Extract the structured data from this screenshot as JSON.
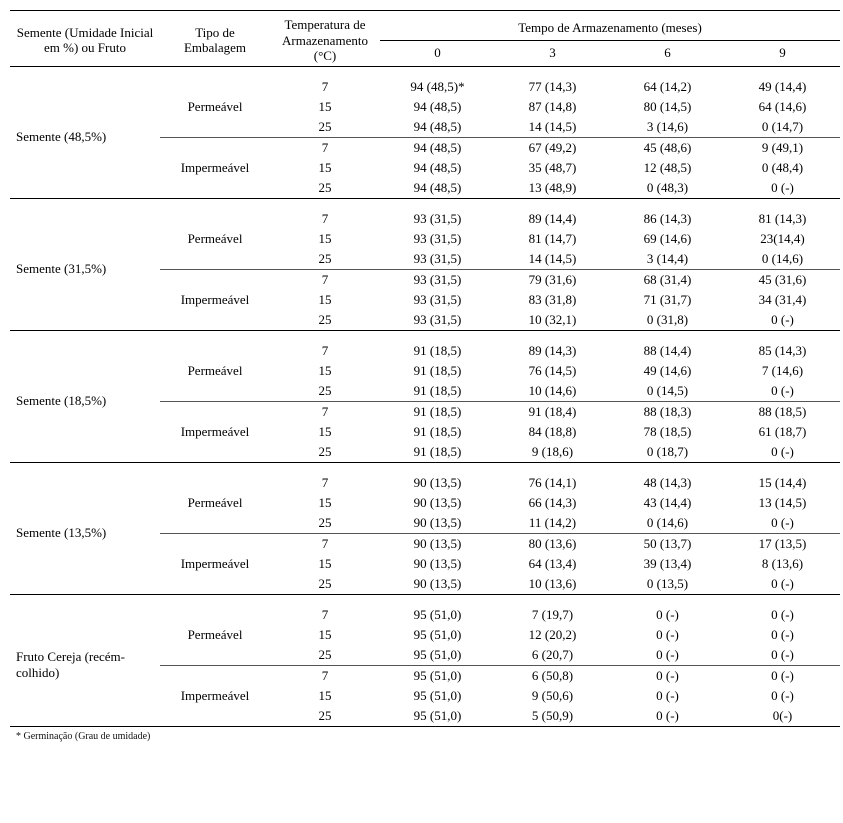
{
  "header": {
    "col_semente": "Semente (Umidade Inicial em %) ou Fruto",
    "col_embalagem": "Tipo de Embalagem",
    "col_temp": "Temperatura de Armazenamento (°C)",
    "col_tempo": "Tempo de Armazenamento (meses)",
    "months": [
      "0",
      "3",
      "6",
      "9"
    ]
  },
  "footnote": "* Germinação (Grau de umidade)",
  "temps": [
    "7",
    "15",
    "25"
  ],
  "emb": [
    "Permeável",
    "Impermeável"
  ],
  "sections": [
    {
      "label": "Semente (48,5%)",
      "blocks": [
        {
          "emb": "Permeável",
          "rows": [
            [
              "7",
              "94 (48,5)*",
              "77 (14,3)",
              "64 (14,2)",
              "49 (14,4)"
            ],
            [
              "15",
              "94 (48,5)",
              "87 (14,8)",
              "80 (14,5)",
              "64 (14,6)"
            ],
            [
              "25",
              "94 (48,5)",
              "14 (14,5)",
              "3 (14,6)",
              "0 (14,7)"
            ]
          ]
        },
        {
          "emb": "Impermeável",
          "rows": [
            [
              "7",
              "94 (48,5)",
              "67 (49,2)",
              "45 (48,6)",
              "9 (49,1)"
            ],
            [
              "15",
              "94 (48,5)",
              "35 (48,7)",
              "12 (48,5)",
              "0 (48,4)"
            ],
            [
              "25",
              "94 (48,5)",
              "13 (48,9)",
              "0 (48,3)",
              "0 (-)"
            ]
          ]
        }
      ]
    },
    {
      "label": "Semente (31,5%)",
      "blocks": [
        {
          "emb": "Permeável",
          "rows": [
            [
              "7",
              "93 (31,5)",
              "89 (14,4)",
              "86 (14,3)",
              "81 (14,3)"
            ],
            [
              "15",
              "93 (31,5)",
              "81 (14,7)",
              "69 (14,6)",
              "23(14,4)"
            ],
            [
              "25",
              "93 (31,5)",
              "14 (14,5)",
              "3 (14,4)",
              "0 (14,6)"
            ]
          ]
        },
        {
          "emb": "Impermeável",
          "rows": [
            [
              "7",
              "93 (31,5)",
              "79 (31,6)",
              "68 (31,4)",
              "45 (31,6)"
            ],
            [
              "15",
              "93 (31,5)",
              "83 (31,8)",
              "71 (31,7)",
              "34 (31,4)"
            ],
            [
              "25",
              "93 (31,5)",
              "10 (32,1)",
              "0 (31,8)",
              "0 (-)"
            ]
          ]
        }
      ]
    },
    {
      "label": "Semente (18,5%)",
      "blocks": [
        {
          "emb": "Permeável",
          "rows": [
            [
              "7",
              "91 (18,5)",
              "89 (14,3)",
              "88 (14,4)",
              "85 (14,3)"
            ],
            [
              "15",
              "91 (18,5)",
              "76 (14,5)",
              "49 (14,6)",
              "7 (14,6)"
            ],
            [
              "25",
              "91 (18,5)",
              "10 (14,6)",
              "0 (14,5)",
              "0 (-)"
            ]
          ]
        },
        {
          "emb": "Impermeável",
          "rows": [
            [
              "7",
              "91 (18,5)",
              "91 (18,4)",
              "88 (18,3)",
              "88 (18,5)"
            ],
            [
              "15",
              "91 (18,5)",
              "84 (18,8)",
              "78 (18,5)",
              "61 (18,7)"
            ],
            [
              "25",
              "91 (18,5)",
              "9 (18,6)",
              "0 (18,7)",
              "0 (-)"
            ]
          ]
        }
      ]
    },
    {
      "label": "Semente (13,5%)",
      "blocks": [
        {
          "emb": "Permeável",
          "rows": [
            [
              "7",
              "90 (13,5)",
              "76 (14,1)",
              "48 (14,3)",
              "15 (14,4)"
            ],
            [
              "15",
              "90 (13,5)",
              "66 (14,3)",
              "43 (14,4)",
              "13 (14,5)"
            ],
            [
              "25",
              "90 (13,5)",
              "11 (14,2)",
              "0 (14,6)",
              "0 (-)"
            ]
          ]
        },
        {
          "emb": "Impermeável",
          "rows": [
            [
              "7",
              "90 (13,5)",
              "80 (13,6)",
              "50 (13,7)",
              "17 (13,5)"
            ],
            [
              "15",
              "90 (13,5)",
              "64 (13,4)",
              "39 (13,4)",
              "8 (13,6)"
            ],
            [
              "25",
              "90 (13,5)",
              "10 (13,6)",
              "0 (13,5)",
              "0 (-)"
            ]
          ]
        }
      ]
    },
    {
      "label": "Fruto Cereja (recém-colhido)",
      "blocks": [
        {
          "emb": "Permeável",
          "rows": [
            [
              "7",
              "95 (51,0)",
              "7 (19,7)",
              "0 (-)",
              "0 (-)"
            ],
            [
              "15",
              "95 (51,0)",
              "12 (20,2)",
              "0 (-)",
              "0 (-)"
            ],
            [
              "25",
              "95 (51,0)",
              "6 (20,7)",
              "0 (-)",
              "0 (-)"
            ]
          ]
        },
        {
          "emb": "Impermeável",
          "rows": [
            [
              "7",
              "95 (51,0)",
              "6 (50,8)",
              "0 (-)",
              "0 (-)"
            ],
            [
              "15",
              "95 (51,0)",
              "9 (50,6)",
              "0 (-)",
              "0 (-)"
            ],
            [
              "25",
              "95 (51,0)",
              "5 (50,9)",
              "0 (-)",
              "0(-)"
            ]
          ]
        }
      ]
    }
  ]
}
